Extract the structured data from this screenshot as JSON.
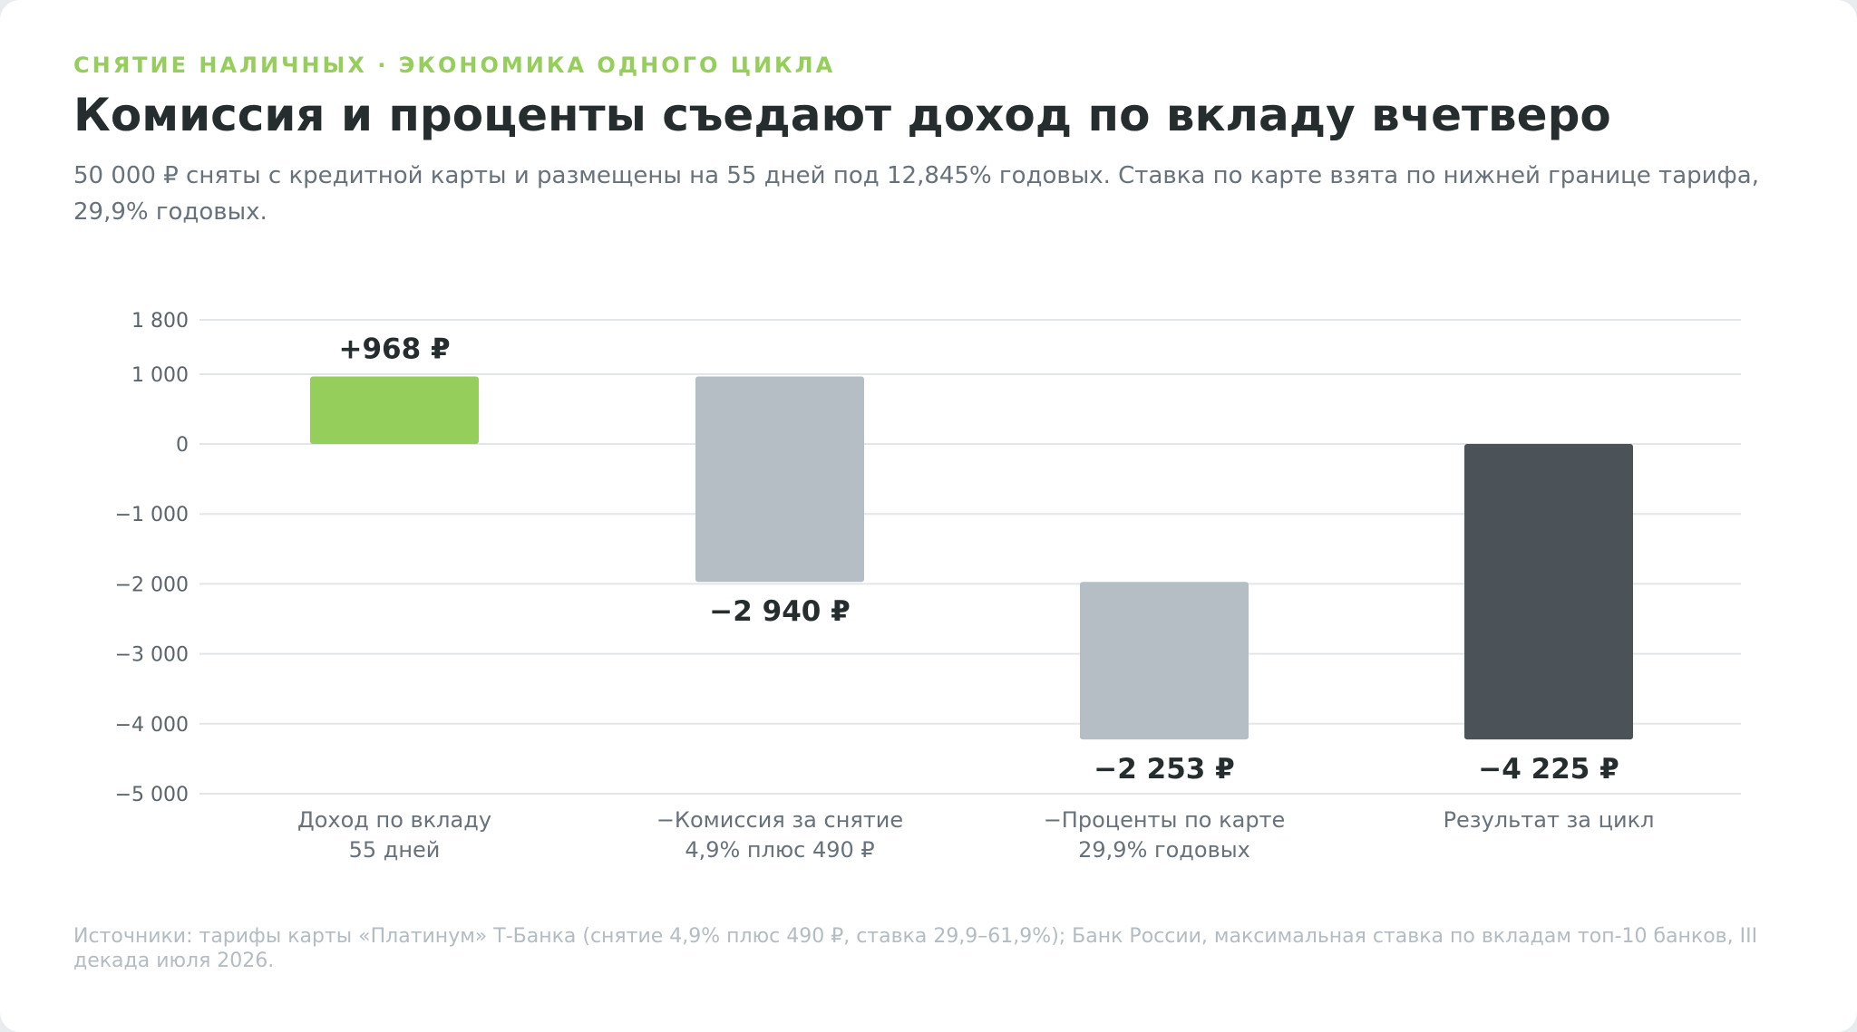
{
  "header": {
    "kicker": "СНЯТИЕ НАЛИЧНЫХ · ЭКОНОМИКА ОДНОГО ЦИКЛА",
    "title": "Комиссия и проценты съедают доход по вкладу вчетверо",
    "subtitle": "50 000 ₽ сняты с кредитной карты и размещены на 55 дней под 12,845% годовых. Ставка по карте взята по нижней границе тарифа, 29,9% годовых."
  },
  "footer": {
    "source": "Источники: тарифы карты «Платинум» Т-Банка (снятие 4,9% плюс 490 ₽, ставка 29,9–61,9%); Банк России, максимальная ставка по вкладам топ-10 банков, III декада июля 2026."
  },
  "colors": {
    "positive": "#96ce5c",
    "cost": "#b4bec4",
    "result": "#4b5359",
    "grid": "#e3e6e8",
    "tick_text": "#5a646b",
    "label_text": "#262d2f",
    "category_text": "#68727a"
  },
  "chart_data": {
    "type": "bar",
    "subtype": "waterfall",
    "yticks": [
      1800,
      1000,
      0,
      -1000,
      -2000,
      -3000,
      -4000,
      -5000
    ],
    "ytick_labels": [
      "1 800",
      "1 000",
      "0",
      "−1 000",
      "−2 000",
      "−3 000",
      "−4 000",
      "−5 000"
    ],
    "ylim": [
      -5000,
      1800
    ],
    "grid": true,
    "categories": [
      {
        "line1": "Доход по вкладу",
        "line2": "55 дней"
      },
      {
        "line1": "−Комиссия за снятие",
        "line2": "4,9% плюс 490 ₽"
      },
      {
        "line1": "−Проценты по карте",
        "line2": "29,9% годовых"
      },
      {
        "line1": "Результат за цикл",
        "line2": ""
      }
    ],
    "bars": [
      {
        "start": 0,
        "end": 968,
        "kind": "positive",
        "label": "+968 ₽"
      },
      {
        "start": 968,
        "end": -1972,
        "kind": "cost",
        "label": "−2 940 ₽"
      },
      {
        "start": -1972,
        "end": -4225,
        "kind": "cost",
        "label": "−2 253 ₽"
      },
      {
        "start": 0,
        "end": -4225,
        "kind": "result",
        "label": "−4 225 ₽"
      }
    ]
  }
}
